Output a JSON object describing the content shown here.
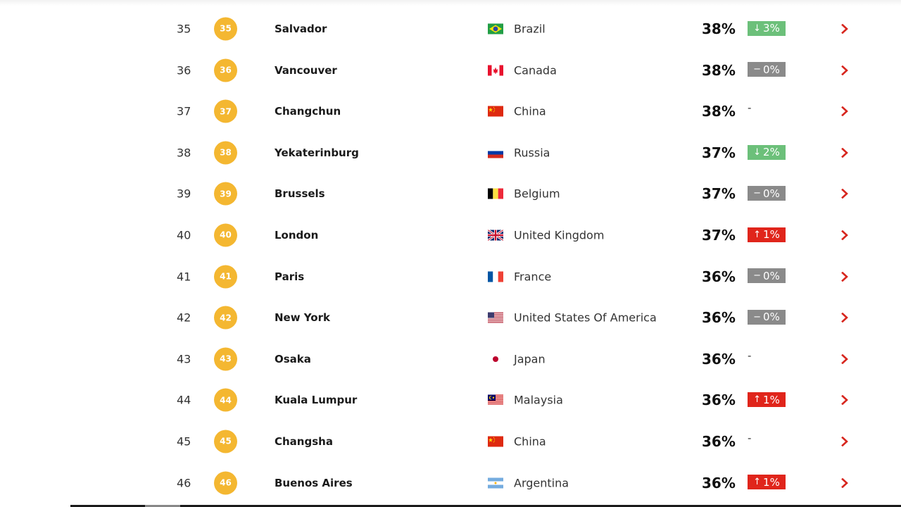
{
  "rows": [
    {
      "rank": "35",
      "badge": "35",
      "city": "Salvador",
      "country": "Brazil",
      "flag": "brazil-flag-icon",
      "percent": "38%",
      "change": {
        "type": "down",
        "arrow": "↓",
        "text": "3%"
      }
    },
    {
      "rank": "36",
      "badge": "36",
      "city": "Vancouver",
      "country": "Canada",
      "flag": "canada-flag-icon",
      "percent": "38%",
      "change": {
        "type": "same",
        "arrow": "−",
        "text": "0%"
      }
    },
    {
      "rank": "37",
      "badge": "37",
      "city": "Changchun",
      "country": "China",
      "flag": "china-flag-icon",
      "percent": "38%",
      "change": {
        "type": "none",
        "arrow": "",
        "text": "-"
      }
    },
    {
      "rank": "38",
      "badge": "38",
      "city": "Yekaterinburg",
      "country": "Russia",
      "flag": "russia-flag-icon",
      "percent": "37%",
      "change": {
        "type": "down",
        "arrow": "↓",
        "text": "2%"
      }
    },
    {
      "rank": "39",
      "badge": "39",
      "city": "Brussels",
      "country": "Belgium",
      "flag": "belgium-flag-icon",
      "percent": "37%",
      "change": {
        "type": "same",
        "arrow": "−",
        "text": "0%"
      }
    },
    {
      "rank": "40",
      "badge": "40",
      "city": "London",
      "country": "United Kingdom",
      "flag": "uk-flag-icon",
      "percent": "37%",
      "change": {
        "type": "up",
        "arrow": "↑",
        "text": "1%"
      }
    },
    {
      "rank": "41",
      "badge": "41",
      "city": "Paris",
      "country": "France",
      "flag": "france-flag-icon",
      "percent": "36%",
      "change": {
        "type": "same",
        "arrow": "−",
        "text": "0%"
      }
    },
    {
      "rank": "42",
      "badge": "42",
      "city": "New York",
      "country": "United States Of America",
      "flag": "usa-flag-icon",
      "percent": "36%",
      "change": {
        "type": "same",
        "arrow": "−",
        "text": "0%"
      }
    },
    {
      "rank": "43",
      "badge": "43",
      "city": "Osaka",
      "country": "Japan",
      "flag": "japan-flag-icon",
      "percent": "36%",
      "change": {
        "type": "none",
        "arrow": "",
        "text": "-"
      }
    },
    {
      "rank": "44",
      "badge": "44",
      "city": "Kuala Lumpur",
      "country": "Malaysia",
      "flag": "malaysia-flag-icon",
      "percent": "36%",
      "change": {
        "type": "up",
        "arrow": "↑",
        "text": "1%"
      }
    },
    {
      "rank": "45",
      "badge": "45",
      "city": "Changsha",
      "country": "China",
      "flag": "china-flag-icon",
      "percent": "36%",
      "change": {
        "type": "none",
        "arrow": "",
        "text": "-"
      }
    },
    {
      "rank": "46",
      "badge": "46",
      "city": "Buenos Aires",
      "country": "Argentina",
      "flag": "argentina-flag-icon",
      "percent": "36%",
      "change": {
        "type": "up",
        "arrow": "↑",
        "text": "1%"
      }
    }
  ],
  "colors": {
    "badge": "#f4b731",
    "down": "#6cc07a",
    "same": "#8a8a8a",
    "up": "#e0251b",
    "chevron": "#d7261e"
  },
  "icons": {
    "row_link": "chevron-right-icon"
  }
}
